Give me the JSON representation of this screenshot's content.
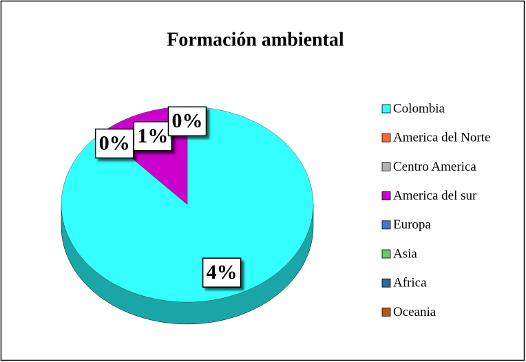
{
  "chart_data": {
    "type": "pie",
    "title": "Formación ambiental",
    "categories": [
      "Colombia",
      "America del Norte",
      "Centro America",
      "America del sur",
      "Europa",
      "Asia",
      "Africa",
      "Oceania"
    ],
    "values": [
      3.7,
      0,
      0,
      0.5,
      0,
      0,
      0,
      0
    ],
    "value_labels": [
      "4%",
      "0%",
      null,
      "1%",
      "0%",
      null,
      null,
      null
    ],
    "colors": [
      "#33ffff",
      "#ff6633",
      "#b0b0b0",
      "#cc00cc",
      "#4477dd",
      "#66cc66",
      "#336699",
      "#bb5511"
    ],
    "side_colors": [
      "#1aa6a6",
      "#a63d1a",
      "#707070",
      "#800080",
      "#2a4f99",
      "#3d8a3d",
      "#1f4466",
      "#7a360b"
    ],
    "legend": "right"
  }
}
